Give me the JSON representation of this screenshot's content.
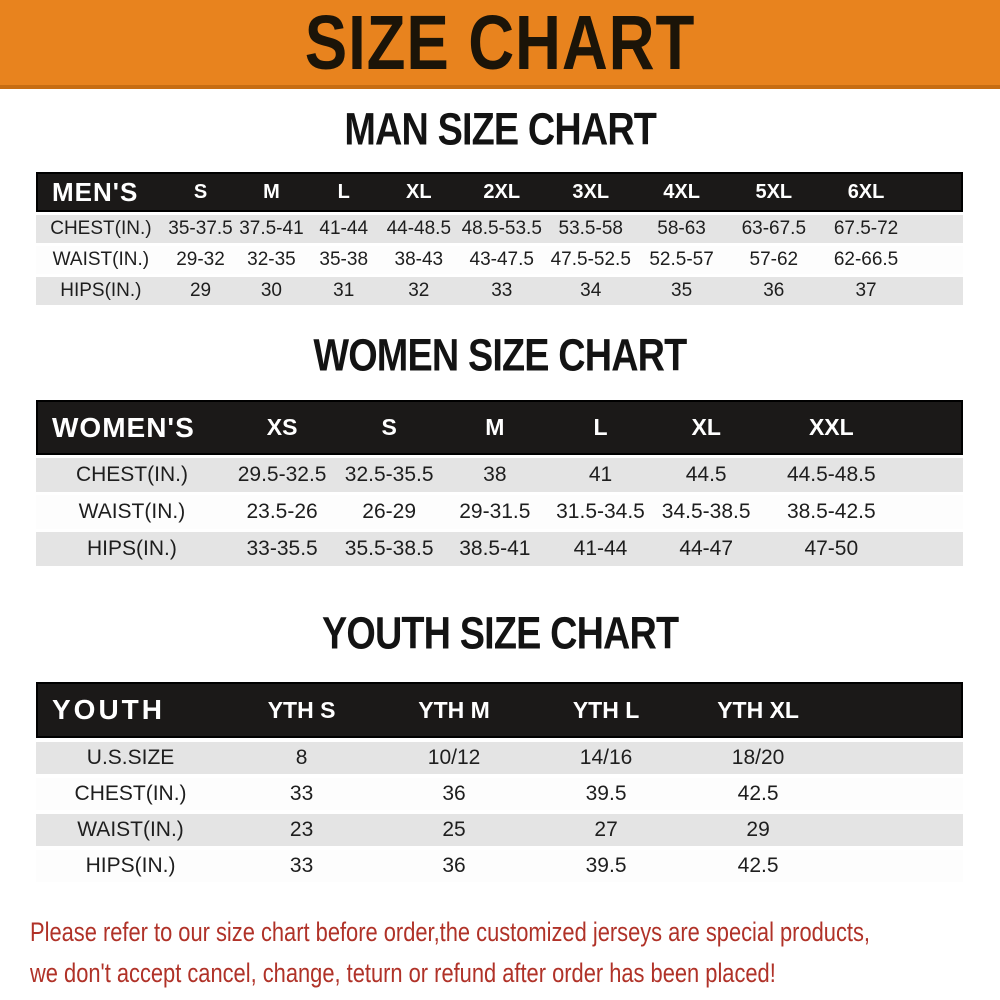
{
  "banner": {
    "title": "SIZE CHART"
  },
  "sections": [
    {
      "heading": "MAN SIZE CHART",
      "table": {
        "label": "MEN'S",
        "columns": [
          "S",
          "M",
          "L",
          "XL",
          "2XL",
          "3XL",
          "4XL",
          "5XL",
          "6XL"
        ],
        "rows": [
          {
            "label": "CHEST(IN.)",
            "values": [
              "35-37.5",
              "37.5-41",
              "41-44",
              "44-48.5",
              "48.5-53.5",
              "53.5-58",
              "58-63",
              "63-67.5",
              "67.5-72"
            ]
          },
          {
            "label": "WAIST(IN.)",
            "values": [
              "29-32",
              "32-35",
              "35-38",
              "38-43",
              "43-47.5",
              "47.5-52.5",
              "52.5-57",
              "57-62",
              "62-66.5"
            ]
          },
          {
            "label": "HIPS(IN.)",
            "values": [
              "29",
              "30",
              "31",
              "32",
              "33",
              "34",
              "35",
              "36",
              "37"
            ]
          }
        ]
      }
    },
    {
      "heading": "WOMEN SIZE CHART",
      "table": {
        "label": "WOMEN'S",
        "columns": [
          "XS",
          "S",
          "M",
          "L",
          "XL",
          "XXL"
        ],
        "rows": [
          {
            "label": "CHEST(IN.)",
            "values": [
              "29.5-32.5",
              "32.5-35.5",
              "38",
              "41",
              "44.5",
              "44.5-48.5"
            ]
          },
          {
            "label": "WAIST(IN.)",
            "values": [
              "23.5-26",
              "26-29",
              "29-31.5",
              "31.5-34.5",
              "34.5-38.5",
              "38.5-42.5"
            ]
          },
          {
            "label": "HIPS(IN.)",
            "values": [
              "33-35.5",
              "35.5-38.5",
              "38.5-41",
              "41-44",
              "44-47",
              "47-50"
            ]
          }
        ]
      }
    },
    {
      "heading": "YOUTH SIZE CHART",
      "table": {
        "label": "YOUTH",
        "columns": [
          "YTH S",
          "YTH M",
          "YTH L",
          "YTH XL"
        ],
        "rows": [
          {
            "label": "U.S.SIZE",
            "values": [
              "8",
              "10/12",
              "14/16",
              "18/20"
            ]
          },
          {
            "label": "CHEST(IN.)",
            "values": [
              "33",
              "36",
              "39.5",
              "42.5"
            ]
          },
          {
            "label": "WAIST(IN.)",
            "values": [
              "23",
              "25",
              "27",
              "29"
            ]
          },
          {
            "label": "HIPS(IN.)",
            "values": [
              "33",
              "36",
              "39.5",
              "42.5"
            ]
          }
        ]
      }
    }
  ],
  "footer": {
    "line1": "Please refer to our size chart before order,the customized jerseys are special products,",
    "line2": "we don't accept cancel, change, teturn or refund after order has been placed!"
  },
  "colors": {
    "banner_bg": "#e8831e",
    "banner_edge": "#c76d12",
    "banner_text": "#1b1408",
    "heading_text": "#131313",
    "header_bar_bg": "#1b1918",
    "header_bar_text": "#ffffff",
    "row_gray": "#e4e4e4",
    "row_white": "#fdfdfd",
    "body_text": "#1e1e1e",
    "footer_red": "#b03228"
  }
}
